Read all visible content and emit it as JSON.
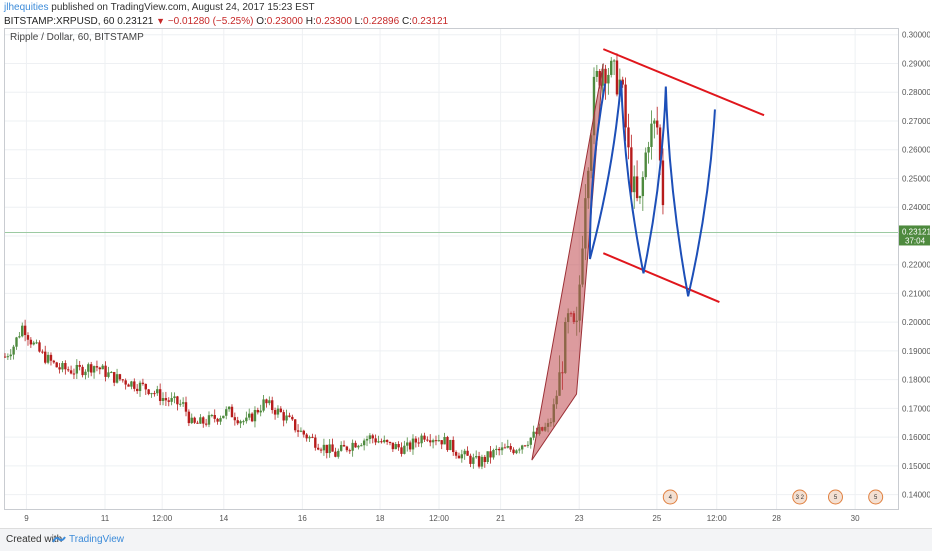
{
  "header": {
    "publisher": "jlhequities",
    "published_text": "published on TradingView.com, August 24, 2017 15:23 EST",
    "symbol": "BITSTAMP:XRPUSD, 60",
    "last": "0.23121",
    "change": "−0.01280 (−5.25%)",
    "o_label": "O:",
    "o": "0.23000",
    "h_label": "H:",
    "h": "0.23300",
    "l_label": "L:",
    "l": "0.22896",
    "c_label": "C:",
    "c": "0.23121"
  },
  "chart_data": {
    "type": "candlestick",
    "title": "Ripple / Dollar, 60, BITSTAMP",
    "ylim": [
      0.135,
      0.302
    ],
    "y_ticks": [
      "0.30000",
      "0.29000",
      "0.28000",
      "0.27000",
      "0.26000",
      "0.25000",
      "0.24000",
      "0.23000",
      "0.22000",
      "0.21000",
      "0.20000",
      "0.19000",
      "0.18000",
      "0.17000",
      "0.16000",
      "0.15000",
      "0.14000"
    ],
    "x_ticks": [
      "9",
      "11",
      "12:00",
      "14",
      "16",
      "18",
      "12:00",
      "21",
      "23",
      "25",
      "12:00",
      "28",
      "30"
    ],
    "last_price_label": "0.23121",
    "countdown_label": "37:04",
    "price_path": [
      [
        0.0,
        0.188
      ],
      [
        0.01,
        0.192
      ],
      [
        0.02,
        0.199
      ],
      [
        0.03,
        0.193
      ],
      [
        0.04,
        0.189
      ],
      [
        0.06,
        0.184
      ],
      [
        0.08,
        0.183
      ],
      [
        0.1,
        0.185
      ],
      [
        0.12,
        0.181
      ],
      [
        0.14,
        0.179
      ],
      [
        0.16,
        0.177
      ],
      [
        0.18,
        0.173
      ],
      [
        0.2,
        0.171
      ],
      [
        0.21,
        0.164
      ],
      [
        0.23,
        0.166
      ],
      [
        0.25,
        0.169
      ],
      [
        0.27,
        0.165
      ],
      [
        0.29,
        0.172
      ],
      [
        0.31,
        0.168
      ],
      [
        0.33,
        0.162
      ],
      [
        0.35,
        0.158
      ],
      [
        0.37,
        0.154
      ],
      [
        0.39,
        0.158
      ],
      [
        0.41,
        0.16
      ],
      [
        0.43,
        0.157
      ],
      [
        0.45,
        0.156
      ],
      [
        0.47,
        0.161
      ],
      [
        0.49,
        0.159
      ],
      [
        0.51,
        0.154
      ],
      [
        0.53,
        0.151
      ],
      [
        0.55,
        0.155
      ],
      [
        0.57,
        0.156
      ],
      [
        0.59,
        0.16
      ],
      [
        0.61,
        0.164
      ],
      [
        0.62,
        0.178
      ],
      [
        0.63,
        0.2
      ],
      [
        0.64,
        0.195
      ],
      [
        0.65,
        0.248
      ],
      [
        0.66,
        0.282
      ],
      [
        0.67,
        0.29
      ],
      [
        0.68,
        0.286
      ],
      [
        0.69,
        0.283
      ],
      [
        0.7,
        0.252
      ],
      [
        0.71,
        0.238
      ],
      [
        0.72,
        0.265
      ],
      [
        0.73,
        0.269
      ],
      [
        0.74,
        0.231
      ]
    ],
    "annotations": [
      {
        "type": "trendline",
        "color": "#e0161c",
        "name": "upper-channel-line",
        "from": [
          0.67,
          0.295
        ],
        "to": [
          0.85,
          0.272
        ]
      },
      {
        "type": "trendline",
        "color": "#e0161c",
        "name": "lower-channel-line",
        "from": [
          0.67,
          0.224
        ],
        "to": [
          0.8,
          0.207
        ]
      },
      {
        "type": "polygon",
        "color": "#c0484f",
        "name": "flagpole-triangle",
        "points": [
          [
            0.59,
            0.152
          ],
          [
            0.64,
            0.175
          ],
          [
            0.67,
            0.29
          ]
        ]
      },
      {
        "type": "zigzag",
        "color": "#1d4fb8",
        "name": "wave-projection"
      }
    ],
    "events": [
      "4",
      "3 2",
      "5",
      "5"
    ]
  },
  "footer": {
    "created_with": "Created with",
    "brand": "TradingView"
  },
  "colors": {
    "up": "#4e8a3e",
    "down": "#b71c1c",
    "grid": "#eef0f3",
    "axis_text": "#555555",
    "last_price_bg": "#4e8a3e"
  }
}
